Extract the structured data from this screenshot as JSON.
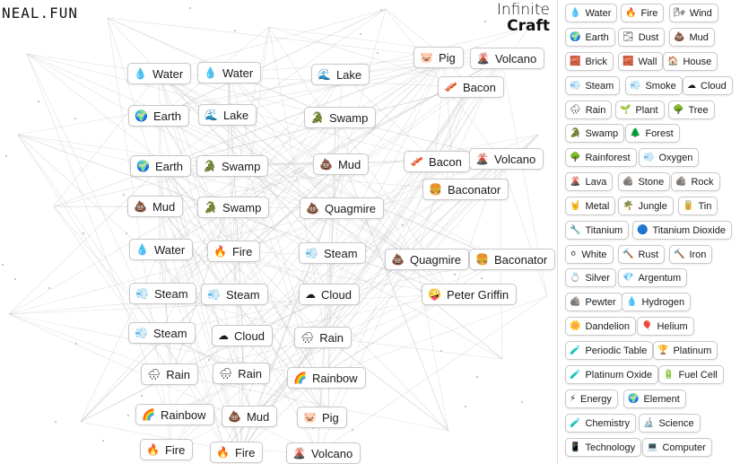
{
  "logo": "NEAL.FUN",
  "brand": {
    "line1": "Infinite",
    "line2": "Craft"
  },
  "workspace": [
    {
      "name": "Water",
      "emoji": "💧"
    },
    {
      "name": "Water",
      "emoji": "💧"
    },
    {
      "name": "Lake",
      "emoji": "🌊"
    },
    {
      "name": "Pig",
      "emoji": "🐷"
    },
    {
      "name": "Volcano",
      "emoji": "🌋"
    },
    {
      "name": "Bacon",
      "emoji": "🥓"
    },
    {
      "name": "Earth",
      "emoji": "🌍"
    },
    {
      "name": "Lake",
      "emoji": "🌊"
    },
    {
      "name": "Swamp",
      "emoji": "🐊"
    },
    {
      "name": "Earth",
      "emoji": "🌍"
    },
    {
      "name": "Swamp",
      "emoji": "🐊"
    },
    {
      "name": "Mud",
      "emoji": "💩"
    },
    {
      "name": "Bacon",
      "emoji": "🥓"
    },
    {
      "name": "Volcano",
      "emoji": "🌋"
    },
    {
      "name": "Baconator",
      "emoji": "🍔"
    },
    {
      "name": "Mud",
      "emoji": "💩"
    },
    {
      "name": "Swamp",
      "emoji": "🐊"
    },
    {
      "name": "Quagmire",
      "emoji": "💩"
    },
    {
      "name": "Water",
      "emoji": "💧"
    },
    {
      "name": "Fire",
      "emoji": "🔥"
    },
    {
      "name": "Steam",
      "emoji": "💨"
    },
    {
      "name": "Quagmire",
      "emoji": "💩"
    },
    {
      "name": "Baconator",
      "emoji": "🍔"
    },
    {
      "name": "Steam",
      "emoji": "💨"
    },
    {
      "name": "Steam",
      "emoji": "💨"
    },
    {
      "name": "Cloud",
      "emoji": "☁"
    },
    {
      "name": "Peter Griffin",
      "emoji": "🤪"
    },
    {
      "name": "Steam",
      "emoji": "💨"
    },
    {
      "name": "Cloud",
      "emoji": "☁"
    },
    {
      "name": "Rain",
      "emoji": "🌧"
    },
    {
      "name": "Rain",
      "emoji": "🌧"
    },
    {
      "name": "Rain",
      "emoji": "🌧"
    },
    {
      "name": "Rainbow",
      "emoji": "🌈"
    },
    {
      "name": "Rainbow",
      "emoji": "🌈"
    },
    {
      "name": "Mud",
      "emoji": "💩"
    },
    {
      "name": "Pig",
      "emoji": "🐷"
    },
    {
      "name": "Fire",
      "emoji": "🔥"
    },
    {
      "name": "Fire",
      "emoji": "🔥"
    },
    {
      "name": "Volcano",
      "emoji": "🌋"
    }
  ],
  "sidebar": [
    {
      "name": "Water",
      "emoji": "💧"
    },
    {
      "name": "Fire",
      "emoji": "🔥"
    },
    {
      "name": "Wind",
      "emoji": "🌬"
    },
    {
      "name": "Earth",
      "emoji": "🌍"
    },
    {
      "name": "Dust",
      "emoji": "🌫"
    },
    {
      "name": "Mud",
      "emoji": "💩"
    },
    {
      "name": "Brick",
      "emoji": "🧱"
    },
    {
      "name": "Wall",
      "emoji": "🧱"
    },
    {
      "name": "House",
      "emoji": "🏠"
    },
    {
      "name": "Steam",
      "emoji": "💨"
    },
    {
      "name": "Smoke",
      "emoji": "💨"
    },
    {
      "name": "Cloud",
      "emoji": "☁"
    },
    {
      "name": "Rain",
      "emoji": "🌧"
    },
    {
      "name": "Plant",
      "emoji": "🌱"
    },
    {
      "name": "Tree",
      "emoji": "🌳"
    },
    {
      "name": "Swamp",
      "emoji": "🐊"
    },
    {
      "name": "Forest",
      "emoji": "🌲"
    },
    {
      "name": "Rainforest",
      "emoji": "🌳"
    },
    {
      "name": "Oxygen",
      "emoji": "💨"
    },
    {
      "name": "Lava",
      "emoji": "🌋"
    },
    {
      "name": "Stone",
      "emoji": "🪨"
    },
    {
      "name": "Rock",
      "emoji": "🪨"
    },
    {
      "name": "Metal",
      "emoji": "🤘"
    },
    {
      "name": "Jungle",
      "emoji": "🌴"
    },
    {
      "name": "Tin",
      "emoji": "🥫"
    },
    {
      "name": "Titanium",
      "emoji": "🔧"
    },
    {
      "name": "Titanium Dioxide",
      "emoji": "🔵"
    },
    {
      "name": "White",
      "emoji": "⚪"
    },
    {
      "name": "Rust",
      "emoji": "🔨"
    },
    {
      "name": "Iron",
      "emoji": "🔨"
    },
    {
      "name": "Silver",
      "emoji": "💍"
    },
    {
      "name": "Argentum",
      "emoji": "💎"
    },
    {
      "name": "Pewter",
      "emoji": "🪨"
    },
    {
      "name": "Hydrogen",
      "emoji": "💧"
    },
    {
      "name": "Dandelion",
      "emoji": "🌼"
    },
    {
      "name": "Helium",
      "emoji": "🎈"
    },
    {
      "name": "Periodic Table",
      "emoji": "🧪"
    },
    {
      "name": "Platinum",
      "emoji": "🏆"
    },
    {
      "name": "Platinum Oxide",
      "emoji": "🧪"
    },
    {
      "name": "Fuel Cell",
      "emoji": "🔋"
    },
    {
      "name": "Energy",
      "emoji": "⚡"
    },
    {
      "name": "Element",
      "emoji": "🌍"
    },
    {
      "name": "Chemistry",
      "emoji": "🧪"
    },
    {
      "name": "Science",
      "emoji": "🔬"
    },
    {
      "name": "Technology",
      "emoji": "📱"
    },
    {
      "name": "Computer",
      "emoji": "💻"
    }
  ]
}
